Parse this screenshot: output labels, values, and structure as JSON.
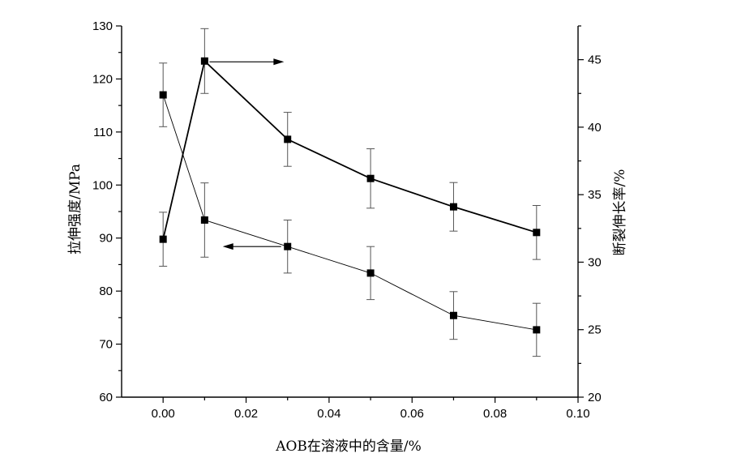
{
  "chart_data": {
    "type": "line",
    "xlabel": "AOB在溶液中的含量/%",
    "ylabel_left": "拉伸强度/MPa",
    "ylabel_right": "断裂伸长率/%",
    "xlim": [
      -0.01,
      0.1
    ],
    "ylim_left": [
      60,
      130
    ],
    "ylim_right": [
      20,
      47.5
    ],
    "x_ticks": [
      "0.00",
      "0.02",
      "0.04",
      "0.06",
      "0.08",
      "0.10"
    ],
    "y_left_ticks": [
      "60",
      "70",
      "80",
      "90",
      "100",
      "110",
      "120",
      "130"
    ],
    "y_right_ticks": [
      "20",
      "25",
      "30",
      "35",
      "40",
      "45"
    ],
    "grid": false,
    "series": [
      {
        "axis": "left",
        "x": [
          0.0,
          0.01,
          0.03,
          0.05,
          0.07,
          0.09
        ],
        "y": [
          117.0,
          93.4,
          88.4,
          83.4,
          75.4,
          72.7
        ],
        "err": [
          6.0,
          7.0,
          5.0,
          5.0,
          4.5,
          5.0
        ]
      },
      {
        "axis": "right",
        "x": [
          0.0,
          0.01,
          0.03,
          0.05,
          0.07,
          0.09
        ],
        "y": [
          31.7,
          44.9,
          39.1,
          36.2,
          34.1,
          32.2
        ],
        "err": [
          2.0,
          2.4,
          2.0,
          2.2,
          1.8,
          2.0
        ]
      }
    ]
  }
}
